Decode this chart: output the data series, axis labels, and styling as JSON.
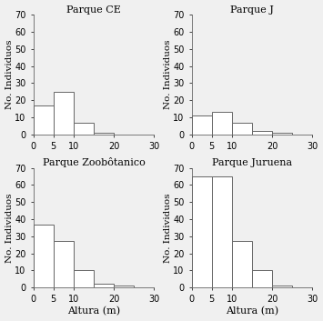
{
  "subplots": [
    {
      "title": "Parque CE",
      "xlabel": "",
      "ylabel": "No. Individuos",
      "bin_edges": [
        0,
        5,
        10,
        15,
        20,
        25,
        30
      ],
      "counts": [
        17,
        25,
        7,
        1,
        0,
        0
      ],
      "ylim": [
        0,
        70
      ],
      "yticks": [
        0,
        10,
        20,
        30,
        40,
        50,
        60,
        70
      ],
      "xticks": [
        0,
        5,
        10,
        20,
        30
      ]
    },
    {
      "title": "Parque J",
      "xlabel": "",
      "ylabel": "No. Individuos",
      "bin_edges": [
        0,
        5,
        10,
        15,
        20,
        25,
        30
      ],
      "counts": [
        11,
        13,
        7,
        2,
        1,
        0
      ],
      "ylim": [
        0,
        70
      ],
      "yticks": [
        0,
        10,
        20,
        30,
        40,
        50,
        60,
        70
      ],
      "xticks": [
        0,
        5,
        10,
        20,
        30
      ]
    },
    {
      "title": "Parque Zoobôtanico",
      "xlabel": "Altura (m)",
      "ylabel": "No. Individuos",
      "bin_edges": [
        0,
        5,
        10,
        15,
        20,
        25,
        30
      ],
      "counts": [
        37,
        27,
        10,
        2,
        1,
        0
      ],
      "ylim": [
        0,
        70
      ],
      "yticks": [
        0,
        10,
        20,
        30,
        40,
        50,
        60,
        70
      ],
      "xticks": [
        0,
        5,
        10,
        20,
        30
      ]
    },
    {
      "title": "Parque Juruena",
      "xlabel": "Altura (m)",
      "ylabel": "No. Individuos",
      "bin_edges": [
        0,
        5,
        10,
        15,
        20,
        25,
        30
      ],
      "counts": [
        65,
        65,
        27,
        10,
        1,
        0
      ],
      "ylim": [
        0,
        70
      ],
      "yticks": [
        0,
        10,
        20,
        30,
        40,
        50,
        60,
        70
      ],
      "xticks": [
        0,
        5,
        10,
        20,
        30
      ]
    }
  ],
  "bar_color": "#ffffff",
  "bar_edgecolor": "#666666",
  "background_color": "#f0f0f0",
  "title_fontsize": 8,
  "label_fontsize": 7.5,
  "tick_fontsize": 7
}
